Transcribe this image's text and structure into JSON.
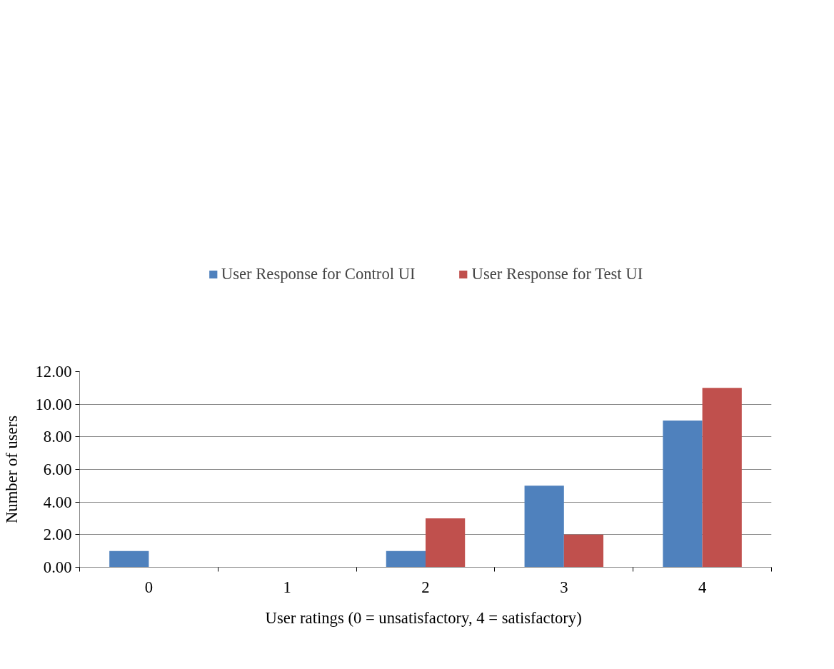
{
  "chart_data": {
    "type": "bar",
    "xlabel": "User ratings (0 = unsatisfactory, 4  = satisfactory)",
    "ylabel": "Number of users",
    "categories": [
      "0",
      "1",
      "2",
      "3",
      "4"
    ],
    "series": [
      {
        "name": "User Response for Control UI",
        "color": "#4f81bd",
        "values": [
          1,
          0,
          1,
          5,
          9
        ]
      },
      {
        "name": "User Response for Test UI",
        "color": "#c0504d",
        "values": [
          0,
          0,
          3,
          2,
          11
        ]
      }
    ],
    "ylim": [
      0,
      12
    ],
    "yticks": [
      {
        "value": 0,
        "label": "0.00"
      },
      {
        "value": 2,
        "label": "2.00"
      },
      {
        "value": 4,
        "label": "4.00"
      },
      {
        "value": 6,
        "label": "6.00"
      },
      {
        "value": 8,
        "label": "8.00"
      },
      {
        "value": 10,
        "label": "10.00"
      },
      {
        "value": 12,
        "label": "12.00"
      }
    ],
    "grid": "y",
    "legend": "top"
  }
}
